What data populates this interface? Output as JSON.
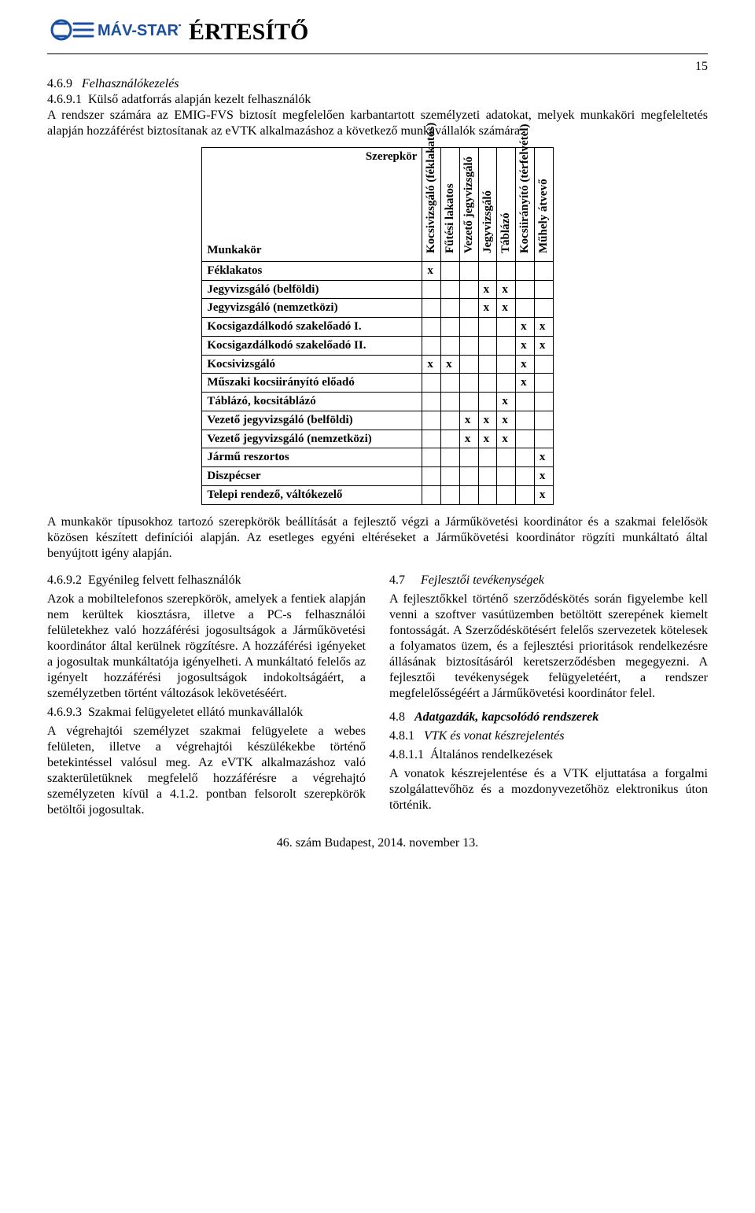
{
  "header": {
    "brand": "MÁV-START",
    "title": "ÉRTESÍTŐ",
    "page_number": "15"
  },
  "section_469": {
    "num": "4.6.9",
    "title": "Felhasználókezelés",
    "sub_num": "4.6.9.1",
    "sub_title": "Külső adatforrás alapján kezelt felhasználók",
    "intro": "A rendszer számára az EMIG-FVS biztosít megfelelően karbantartott személyzeti adatokat, melyek munkaköri megfeleltetés alapján hozzáférést biztosítanak az eVTK alkalmazáshoz a következő munkavállalók számára:"
  },
  "table": {
    "corner_top": "Szerepkör",
    "corner_bottom": "Munkakör",
    "columns": [
      "Kocsivizsgáló (féklakatos)",
      "Fűtési lakatos",
      "Vezető jegyvizsgáló",
      "Jegyvizsgáló",
      "Táblázó",
      "Kocsiirányító (térfelvétel)",
      "Műhely átvevő"
    ],
    "rows": [
      {
        "label": "Féklakatos",
        "marks": [
          "x",
          "",
          "",
          "",
          "",
          "",
          ""
        ]
      },
      {
        "label": "Jegyvizsgáló (belföldi)",
        "marks": [
          "",
          "",
          "",
          "x",
          "x",
          "",
          ""
        ]
      },
      {
        "label": "Jegyvizsgáló (nemzetközi)",
        "marks": [
          "",
          "",
          "",
          "x",
          "x",
          "",
          ""
        ]
      },
      {
        "label": "Kocsigazdálkodó szakelőadó I.",
        "marks": [
          "",
          "",
          "",
          "",
          "",
          "x",
          "x"
        ]
      },
      {
        "label": "Kocsigazdálkodó szakelőadó II.",
        "marks": [
          "",
          "",
          "",
          "",
          "",
          "x",
          "x"
        ]
      },
      {
        "label": "Kocsivizsgáló",
        "marks": [
          "x",
          "x",
          "",
          "",
          "",
          "x",
          ""
        ]
      },
      {
        "label": "Műszaki kocsiirányító előadó",
        "marks": [
          "",
          "",
          "",
          "",
          "",
          "x",
          ""
        ]
      },
      {
        "label": "Táblázó, kocsitáblázó",
        "marks": [
          "",
          "",
          "",
          "",
          "x",
          "",
          ""
        ]
      },
      {
        "label": "Vezető jegyvizsgáló (belföldi)",
        "marks": [
          "",
          "",
          "x",
          "x",
          "x",
          "",
          ""
        ]
      },
      {
        "label": "Vezető jegyvizsgáló (nemzetközi)",
        "marks": [
          "",
          "",
          "x",
          "x",
          "x",
          "",
          ""
        ]
      },
      {
        "label": "Jármű reszortos",
        "marks": [
          "",
          "",
          "",
          "",
          "",
          "",
          "x"
        ]
      },
      {
        "label": "Diszpécser",
        "marks": [
          "",
          "",
          "",
          "",
          "",
          "",
          "x"
        ]
      },
      {
        "label": "Telepi rendező, váltókezelő",
        "marks": [
          "",
          "",
          "",
          "",
          "",
          "",
          "x"
        ]
      }
    ]
  },
  "after_table": "A munkakör típusokhoz tartozó szerepkörök beállítását a fejlesztő végzi a Járműkövetési koordinátor és a szakmai felelősök közösen készített definíciói alapján. Az esetleges egyéni eltéréseket a Járműkövetési koordinátor rögzíti munkáltató által benyújtott igény alapján.",
  "left_col": {
    "s1_num": "4.6.9.2",
    "s1_title": "Egyénileg felvett felhasználók",
    "s1_body": "Azok a mobiltelefonos szerepkörök, amelyek a fentiek alapján nem kerültek kiosztásra, illetve a PC-s felhasználói felületekhez való hozzáférési jogosultságok a Járműkövetési koordinátor által kerülnek rögzítésre. A hozzáférési igényeket a jogosultak munkáltatója igényelheti. A munkáltató felelős az igényelt hozzáférési jogosultságok indokoltságáért, a személyzetben történt változások lekövetéséért.",
    "s2_num": "4.6.9.3",
    "s2_title": "Szakmai felügyeletet ellátó munkavállalók",
    "s2_body": "A végrehajtói személyzet szakmai felügyelete a webes felületen, illetve a végrehajtói készülékekbe történő betekintéssel valósul meg. Az eVTK alkalmazáshoz való szakterületüknek megfelelő hozzáférésre a végrehajtó személyzeten kívül a 4.1.2. pontban felsorolt szerepkörök betöltői jogosultak."
  },
  "right_col": {
    "s47_num": "4.7",
    "s47_title": "Fejlesztői tevékenységek",
    "s47_body": "A fejlesztőkkel történő szerződéskötés során figyelembe kell venni a szoftver vasútüzemben betöltött szerepének kiemelt fontosságát. A Szerződéskötésért felelős szervezetek kötelesek a folyamatos üzem, és a fejlesztési prioritások rendelkezésre állásának biztosításáról keretszerződésben megegyezni. A fejlesztői tevékenységek felügyeletéért, a rendszer megfelelősségéért a Járműkövetési koordinátor felel.",
    "s48_num": "4.8",
    "s48_title": "Adatgazdák, kapcsolódó rendszerek",
    "s481_num": "4.8.1",
    "s481_title": "VTK és vonat készrejelentés",
    "s4811_num": "4.8.1.1",
    "s4811_title": "Általános rendelkezések",
    "s4811_body": "A vonatok készrejelentése és a VTK eljuttatása a forgalmi szolgálattevőhöz és a mozdonyvezetőhöz elektronikus úton történik."
  },
  "footer": "46. szám Budapest, 2014. november 13."
}
